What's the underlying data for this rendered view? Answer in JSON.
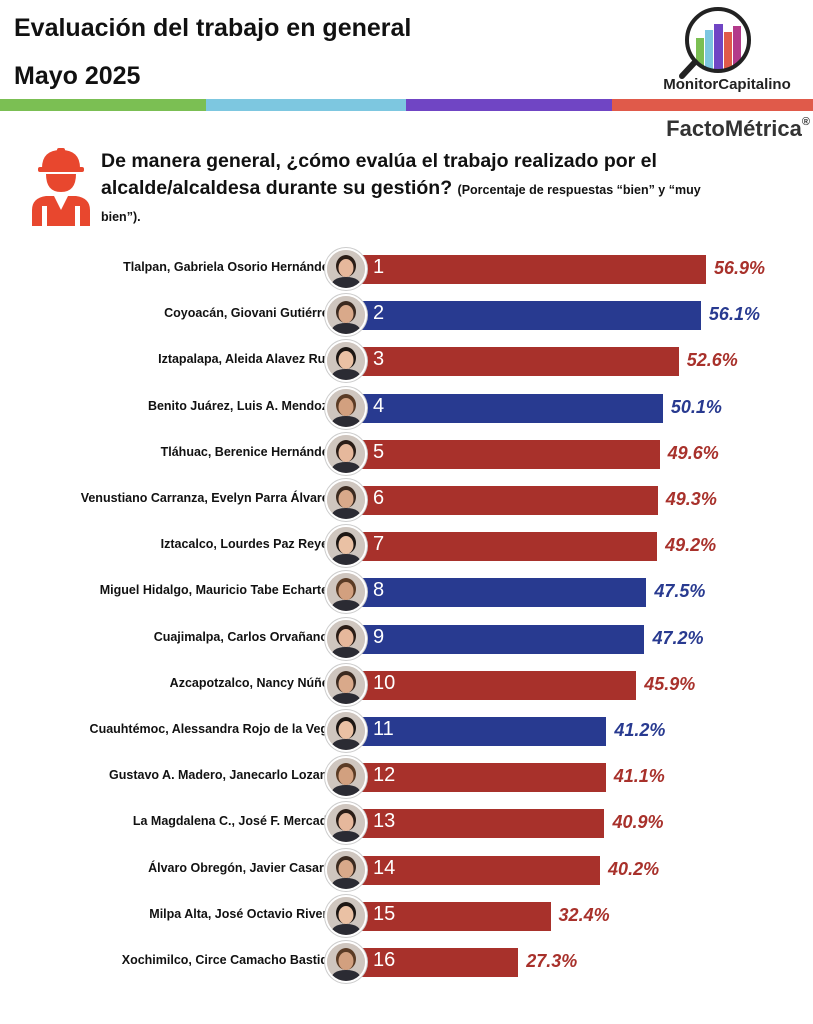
{
  "header": {
    "title": "Evaluación del trabajo en general",
    "subtitle": "Mayo 2025",
    "brand_primary": "MonitorCapitalino",
    "brand_secondary": "FactoMétrica",
    "brand_secondary_mark": "®",
    "band_colors": [
      "#7bbf53",
      "#7dc7e0",
      "#7045c4",
      "#e05a4a"
    ]
  },
  "question": {
    "icon": "worker-icon",
    "text": "De manera general, ¿cómo evalúa el trabajo realizado por el alcalde/alcaldesa durante su gestión?",
    "note": "(Porcentaje de respuestas “bien” y “muy bien”)."
  },
  "colors": {
    "red": "#a8312b",
    "blue": "#283a90"
  },
  "chart_data": {
    "type": "bar",
    "orientation": "horizontal",
    "title": "Evaluación del trabajo en general",
    "subtitle": "Mayo 2025",
    "xlim": [
      0,
      60
    ],
    "grid": false,
    "categories": [
      "Tlalpan, Gabriela Osorio Hernández",
      "Coyoacán, Giovani Gutiérrez",
      "Iztapalapa, Aleida Alavez Ruiz",
      "Benito Juárez, Luis A. Mendoza",
      "Tláhuac, Berenice Hernández",
      "Venustiano Carranza, Evelyn Parra Álvarez",
      "Iztacalco, Lourdes Paz Reyes",
      "Miguel Hidalgo, Mauricio Tabe Echartea",
      "Cuajimalpa, Carlos Orvañanos",
      "Azcapotzalco, Nancy Núñez",
      "Cuauhtémoc, Alessandra Rojo de la Vega",
      "Gustavo A. Madero, Janecarlo Lozano",
      "La Magdalena C., José F. Mercado",
      "Álvaro Obregón, Javier Casarín",
      "Milpa Alta, José Octavio Rivero",
      "Xochimilco, Circe Camacho Bastida"
    ],
    "ranks": [
      "1",
      "2",
      "3",
      "4",
      "5",
      "6",
      "7",
      "8",
      "9",
      "10",
      "11",
      "12",
      "13",
      "14",
      "15",
      "16"
    ],
    "values": [
      56.9,
      56.1,
      52.6,
      50.1,
      49.6,
      49.3,
      49.2,
      47.5,
      47.2,
      45.9,
      41.2,
      41.1,
      40.9,
      40.2,
      32.4,
      27.3
    ],
    "value_labels": [
      "56.9%",
      "56.1%",
      "52.6%",
      "50.1%",
      "49.6%",
      "49.3%",
      "49.2%",
      "47.5%",
      "47.2%",
      "45.9%",
      "41.2%",
      "41.1%",
      "40.9%",
      "40.2%",
      "32.4%",
      "27.3%"
    ],
    "bar_colors": [
      "red",
      "blue",
      "red",
      "blue",
      "red",
      "red",
      "red",
      "blue",
      "blue",
      "red",
      "blue",
      "red",
      "red",
      "red",
      "red",
      "red"
    ]
  }
}
